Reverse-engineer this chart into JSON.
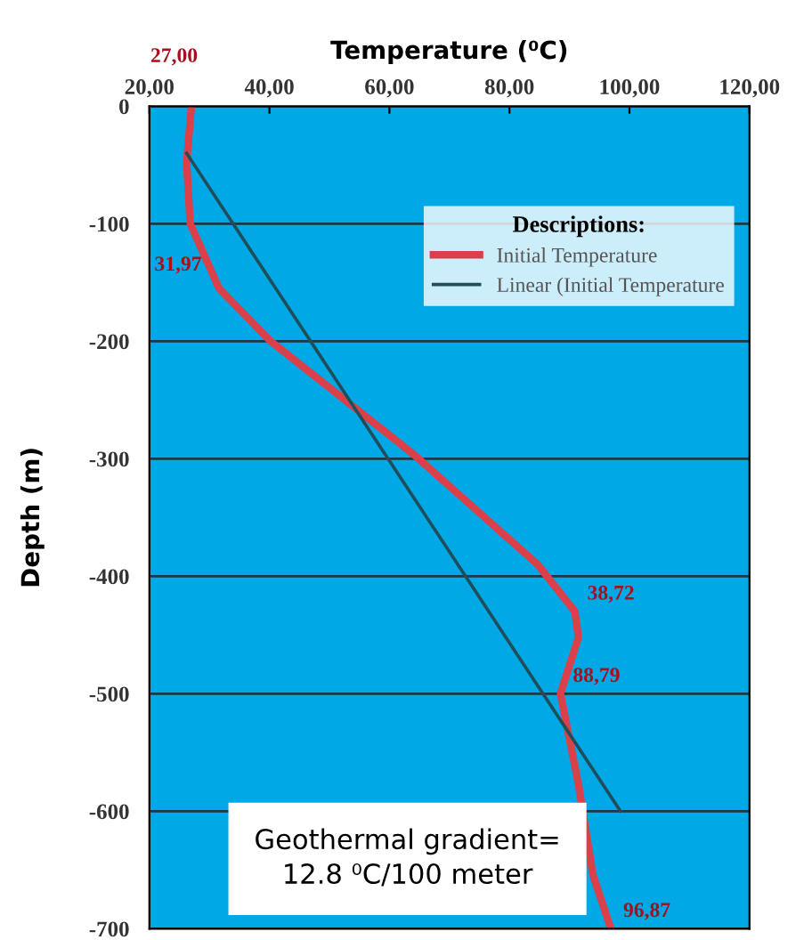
{
  "chart_data": {
    "type": "line",
    "title": "Temperature (⁰C)",
    "ylabel": "Depth (m)",
    "legend_title": "Descriptions:",
    "series": [
      {
        "name": "Initial Temperature",
        "color": "#d9404a",
        "x": [
          27.0,
          26.2,
          26.8,
          31.6,
          40.2,
          64.2,
          84.7,
          90.9,
          91.5,
          88.5,
          91.5,
          93.9,
          96.9
        ],
        "values": [
          0,
          -48,
          -100,
          -155,
          -200,
          -297,
          -390,
          -430,
          -452,
          -500,
          -577,
          -654,
          -700
        ]
      },
      {
        "name": "Linear (Initial Temperature",
        "color": "#1f4e5a",
        "x": [
          26.2,
          98.5
        ],
        "values": [
          -40,
          -600
        ]
      }
    ],
    "xlim": [
      20,
      120
    ],
    "xticks": [
      {
        "value": 20,
        "label": "20,00"
      },
      {
        "value": 40,
        "label": "40,00"
      },
      {
        "value": 60,
        "label": "60,00"
      },
      {
        "value": 80,
        "label": "80,00"
      },
      {
        "value": 100,
        "label": "100,00"
      },
      {
        "value": 120,
        "label": "120,00"
      }
    ],
    "ylim": [
      -700,
      0
    ],
    "yticks": [
      0,
      -100,
      -200,
      -300,
      -400,
      -500,
      -600,
      -700
    ],
    "grid": "y",
    "legend": "top right",
    "annotations": [
      {
        "text": "27,00",
        "x": 27.0,
        "y": 0
      },
      {
        "text": "31,97",
        "x": 31.6,
        "y": -150
      },
      {
        "text": "38,72",
        "x": 90.9,
        "y": -430
      },
      {
        "text": "88,79",
        "x": 88.5,
        "y": -500
      },
      {
        "text": "96,87",
        "x": 96.9,
        "y": -700
      },
      "Geothermal gradient=\n12.8 ⁰C/100 meter"
    ]
  }
}
